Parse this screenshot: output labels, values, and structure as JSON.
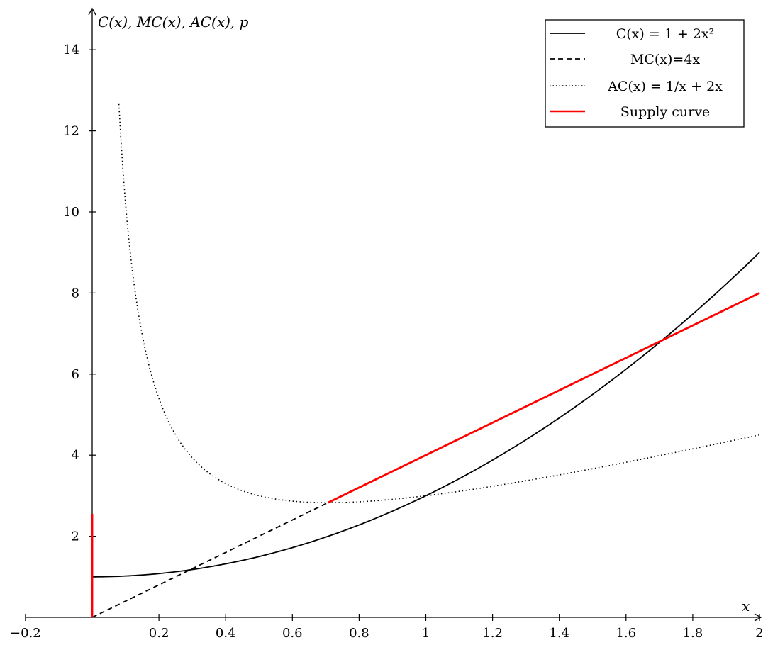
{
  "chart_data": {
    "type": "line",
    "title": "",
    "xlabel": "x",
    "ylabel": "C(x), MC(x), AC(x), p",
    "xlim": [
      -0.2,
      2.0
    ],
    "ylim": [
      0,
      14.8
    ],
    "x_ticks": [
      -0.2,
      0.2,
      0.4,
      0.6,
      0.8,
      1,
      1.2,
      1.4,
      1.6,
      1.8,
      2
    ],
    "x_tick_labels": [
      "−0.2",
      "0.2",
      "0.4",
      "0.6",
      "0.8",
      "1",
      "1.2",
      "1.4",
      "1.6",
      "1.8",
      "2"
    ],
    "y_ticks": [
      2,
      4,
      6,
      8,
      10,
      12,
      14
    ],
    "y_tick_labels": [
      "2",
      "4",
      "6",
      "8",
      "10",
      "12",
      "14"
    ],
    "grid": false,
    "legend_position": "top-right",
    "series": [
      {
        "name": "C(x) = 1 + 2x²",
        "style": "solid",
        "color": "#000000",
        "x": [
          0,
          0.1,
          0.2,
          0.3,
          0.4,
          0.5,
          0.6,
          0.7,
          0.8,
          0.9,
          1.0,
          1.1,
          1.2,
          1.3,
          1.4,
          1.5,
          1.6,
          1.7,
          1.8,
          1.9,
          2.0
        ],
        "y": [
          1,
          1.02,
          1.08,
          1.18,
          1.32,
          1.5,
          1.72,
          1.98,
          2.28,
          2.62,
          3.0,
          3.42,
          3.88,
          4.38,
          4.92,
          5.5,
          6.12,
          6.78,
          7.48,
          8.22,
          9.0
        ]
      },
      {
        "name": "MC(x)=4x",
        "style": "dashed",
        "color": "#000000",
        "x": [
          0,
          0.707
        ],
        "y": [
          0,
          2.83
        ]
      },
      {
        "name": "AC(x) = 1/x + 2x",
        "style": "dotted",
        "color": "#000000",
        "x": [
          0.08,
          0.09,
          0.1,
          0.12,
          0.14,
          0.16,
          0.18,
          0.2,
          0.25,
          0.3,
          0.35,
          0.4,
          0.5,
          0.6,
          0.707,
          0.8,
          0.9,
          1.0,
          1.2,
          1.4,
          1.6,
          1.8,
          2.0
        ],
        "y": [
          12.66,
          11.29,
          10.2,
          8.57,
          7.42,
          6.57,
          5.92,
          5.4,
          4.5,
          3.93,
          3.56,
          3.3,
          3.0,
          2.87,
          2.83,
          2.85,
          2.91,
          3.0,
          3.23,
          3.51,
          3.83,
          4.16,
          4.5
        ]
      },
      {
        "name": "Supply curve",
        "style": "solid",
        "color": "#ff0000",
        "segments": [
          {
            "x": [
              0,
              0
            ],
            "y": [
              0,
              2.55
            ]
          },
          {
            "x": [
              0.707,
              2.0
            ],
            "y": [
              2.83,
              8.0
            ]
          }
        ]
      }
    ],
    "legend": {
      "entries": [
        {
          "label": "C(x) = 1 + 2x²",
          "style": "solid",
          "color": "#000000"
        },
        {
          "label": "MC(x)=4x",
          "style": "dashed",
          "color": "#000000"
        },
        {
          "label": "AC(x) = 1/x + 2x",
          "style": "dotted",
          "color": "#000000"
        },
        {
          "label": "Supply curve",
          "style": "solid",
          "color": "#ff0000"
        }
      ]
    }
  }
}
